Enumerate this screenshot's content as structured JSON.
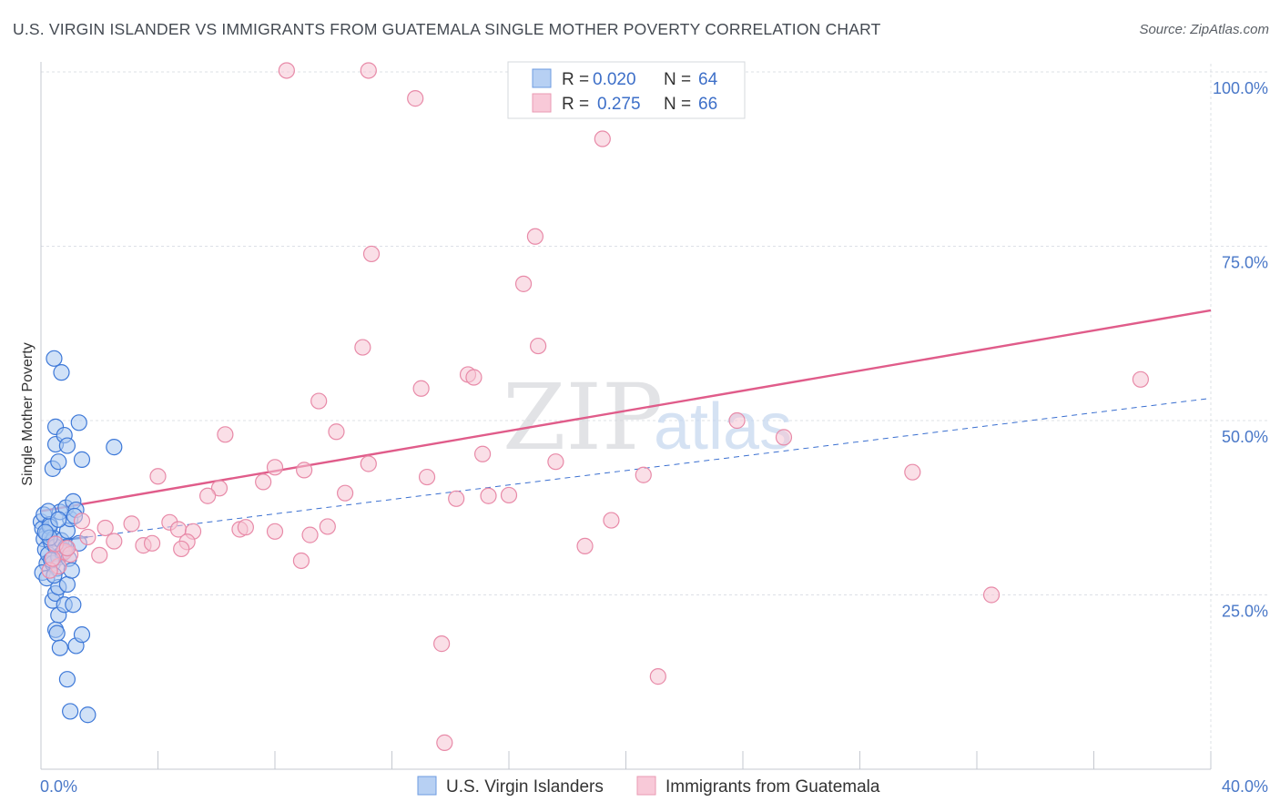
{
  "title": "U.S. VIRGIN ISLANDER VS IMMIGRANTS FROM GUATEMALA SINGLE MOTHER POVERTY CORRELATION CHART",
  "source": "Source: ZipAtlas.com",
  "watermark": {
    "zip": "ZIP",
    "atlas": "atlas"
  },
  "colors": {
    "blue_fill": "#a9c8f0",
    "blue_stroke": "#3d78d8",
    "blue_line": "#3a6fd0",
    "pink_fill": "#f6c4d3",
    "pink_stroke": "#e88aa8",
    "pink_line": "#e05c8a",
    "grid": "#dde0e6",
    "axis_text": "#4a78c8"
  },
  "legend": {
    "rows": [
      {
        "r_label": "R =",
        "r_value": "0.020",
        "n_label": "N =",
        "n_value": "64"
      },
      {
        "r_label": "R =",
        "r_value": "0.275",
        "n_label": "N =",
        "n_value": "66"
      }
    ]
  },
  "chart_data": {
    "type": "scatter",
    "xlabel": "",
    "ylabel": "Single Mother Poverty",
    "xlim": [
      0,
      40
    ],
    "ylim": [
      0,
      100
    ],
    "x_ticks": [
      "0.0%",
      "40.0%"
    ],
    "y_ticks": [
      "25.0%",
      "50.0%",
      "75.0%",
      "100.0%"
    ],
    "legend_placement": "top-center",
    "series": [
      {
        "name": "U.S. Virgin Islanders",
        "r": 0.02,
        "n": 64,
        "trend": {
          "x": [
            0,
            1.6
          ],
          "y": [
            32.5,
            33.3
          ],
          "solid_end": 1.6,
          "dashed_to": 40,
          "y_at_40": 53.2
        },
        "points": [
          [
            0.0,
            35.5
          ],
          [
            0.05,
            34.5
          ],
          [
            0.1,
            33
          ],
          [
            0.15,
            31.5
          ],
          [
            0.2,
            29.5
          ],
          [
            0.05,
            28.2
          ],
          [
            0.1,
            36.5
          ],
          [
            0.2,
            33.8
          ],
          [
            0.3,
            35.1
          ],
          [
            0.35,
            32.5
          ],
          [
            0.25,
            30.8
          ],
          [
            0.4,
            29.5
          ],
          [
            0.3,
            34.8
          ],
          [
            0.45,
            33.1
          ],
          [
            0.5,
            31.9
          ],
          [
            0.6,
            30.4
          ],
          [
            0.55,
            28.8
          ],
          [
            0.7,
            32.8
          ],
          [
            0.8,
            31.4
          ],
          [
            0.9,
            34.2
          ],
          [
            1.0,
            35.9
          ],
          [
            0.65,
            36.9
          ],
          [
            0.85,
            37.5
          ],
          [
            1.1,
            38.4
          ],
          [
            1.2,
            37.2
          ],
          [
            1.3,
            32.4
          ],
          [
            0.4,
            24.2
          ],
          [
            0.5,
            25.2
          ],
          [
            0.6,
            22.1
          ],
          [
            0.5,
            20.0
          ],
          [
            0.55,
            19.5
          ],
          [
            0.65,
            17.4
          ],
          [
            0.8,
            23.6
          ],
          [
            1.1,
            23.6
          ],
          [
            1.2,
            17.7
          ],
          [
            1.4,
            19.3
          ],
          [
            0.9,
            12.9
          ],
          [
            1.0,
            8.3
          ],
          [
            1.6,
            7.8
          ],
          [
            0.6,
            26.1
          ],
          [
            0.9,
            26.5
          ],
          [
            0.4,
            43.1
          ],
          [
            0.5,
            46.6
          ],
          [
            0.5,
            49.1
          ],
          [
            0.6,
            44.1
          ],
          [
            0.8,
            47.9
          ],
          [
            0.9,
            46.4
          ],
          [
            1.3,
            49.7
          ],
          [
            1.4,
            44.4
          ],
          [
            2.5,
            46.2
          ],
          [
            0.45,
            58.9
          ],
          [
            0.7,
            56.9
          ],
          [
            0.3,
            33.2
          ],
          [
            0.75,
            31.0
          ],
          [
            0.95,
            30.2
          ],
          [
            1.15,
            36.3
          ],
          [
            0.2,
            27.4
          ],
          [
            0.35,
            30.0
          ],
          [
            0.15,
            34.0
          ],
          [
            0.25,
            37.0
          ],
          [
            0.85,
            31.8
          ],
          [
            1.05,
            28.5
          ],
          [
            0.45,
            27.8
          ],
          [
            0.6,
            35.8
          ]
        ]
      },
      {
        "name": "Immigrants from Guatemala",
        "r": 0.275,
        "n": 66,
        "trend": {
          "x": [
            0,
            40
          ],
          "y": [
            37.0,
            65.8
          ]
        },
        "points": [
          [
            8.4,
            100.2
          ],
          [
            11.2,
            100.2
          ],
          [
            12.8,
            96.2
          ],
          [
            19.2,
            90.4
          ],
          [
            16.9,
            76.4
          ],
          [
            11.3,
            73.9
          ],
          [
            16.5,
            69.6
          ],
          [
            11.0,
            60.5
          ],
          [
            17.0,
            60.7
          ],
          [
            14.6,
            56.6
          ],
          [
            14.8,
            56.2
          ],
          [
            9.5,
            52.8
          ],
          [
            13.0,
            54.6
          ],
          [
            10.1,
            48.4
          ],
          [
            23.8,
            50.0
          ],
          [
            37.6,
            55.9
          ],
          [
            25.4,
            47.6
          ],
          [
            6.3,
            48.0
          ],
          [
            15.1,
            45.2
          ],
          [
            17.6,
            44.1
          ],
          [
            8.0,
            43.3
          ],
          [
            11.2,
            43.8
          ],
          [
            9.0,
            42.9
          ],
          [
            20.6,
            42.2
          ],
          [
            29.8,
            42.6
          ],
          [
            4.0,
            42.0
          ],
          [
            13.2,
            41.9
          ],
          [
            6.1,
            40.3
          ],
          [
            5.7,
            39.2
          ],
          [
            7.6,
            41.2
          ],
          [
            10.4,
            39.6
          ],
          [
            14.2,
            38.8
          ],
          [
            15.3,
            39.2
          ],
          [
            16.0,
            39.3
          ],
          [
            1.4,
            35.6
          ],
          [
            2.2,
            34.6
          ],
          [
            3.1,
            35.2
          ],
          [
            4.4,
            35.4
          ],
          [
            4.7,
            34.4
          ],
          [
            5.2,
            34.1
          ],
          [
            6.8,
            34.4
          ],
          [
            7.0,
            34.7
          ],
          [
            8.0,
            34.1
          ],
          [
            9.8,
            34.8
          ],
          [
            19.5,
            35.7
          ],
          [
            1.6,
            33.3
          ],
          [
            2.5,
            32.7
          ],
          [
            3.5,
            32.1
          ],
          [
            3.8,
            32.4
          ],
          [
            5.0,
            32.6
          ],
          [
            4.8,
            31.6
          ],
          [
            9.2,
            33.6
          ],
          [
            18.6,
            32.0
          ],
          [
            0.8,
            31.2
          ],
          [
            1.0,
            30.8
          ],
          [
            0.6,
            29.1
          ],
          [
            2.0,
            30.7
          ],
          [
            8.9,
            29.9
          ],
          [
            0.3,
            28.5
          ],
          [
            0.4,
            30.2
          ],
          [
            32.5,
            25.0
          ],
          [
            13.7,
            18.0
          ],
          [
            21.1,
            13.3
          ],
          [
            13.8,
            3.8
          ],
          [
            0.5,
            32.3
          ],
          [
            0.9,
            31.7
          ]
        ]
      }
    ]
  }
}
